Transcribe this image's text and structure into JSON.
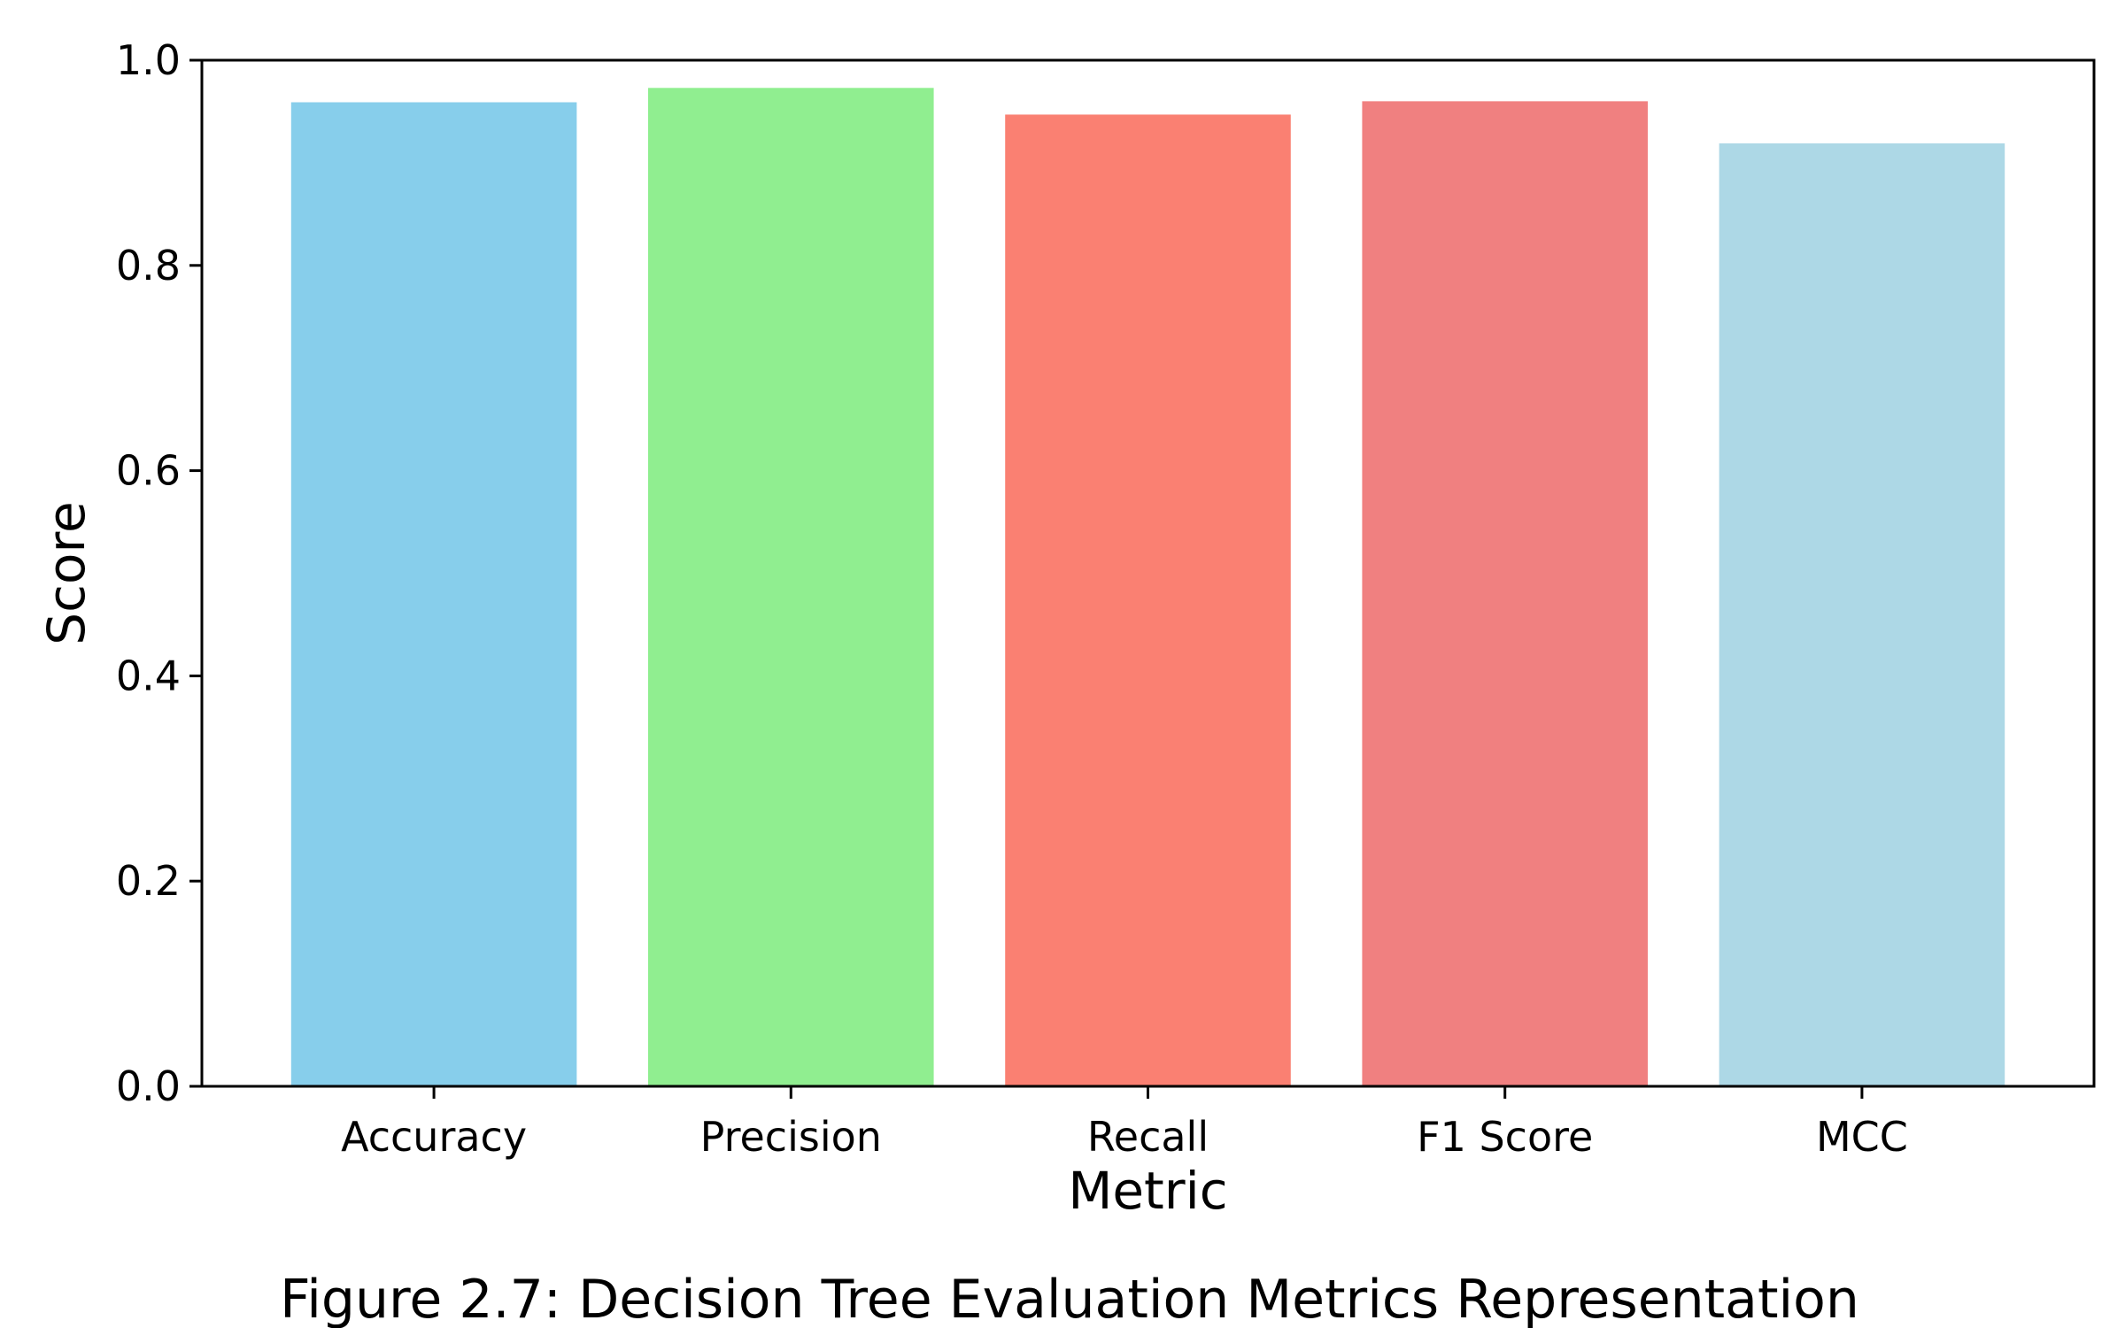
{
  "chart_data": {
    "type": "bar",
    "title": "",
    "xlabel": "Metric",
    "ylabel": "Score",
    "categories": [
      "Accuracy",
      "Precision",
      "Recall",
      "F1 Score",
      "MCC"
    ],
    "values": [
      0.959,
      0.973,
      0.947,
      0.96,
      0.919
    ],
    "colors": [
      "#87CEEB",
      "#90EE90",
      "#FA8072",
      "#F08080",
      "#ADD8E6"
    ],
    "ylim": [
      0,
      1.0
    ],
    "yticks": [
      "0.0",
      "0.2",
      "0.4",
      "0.6",
      "0.8",
      "1.0"
    ],
    "grid": false,
    "legend": "none"
  },
  "caption": "Figure 2.7: Decision Tree Evaluation Metrics Representation"
}
